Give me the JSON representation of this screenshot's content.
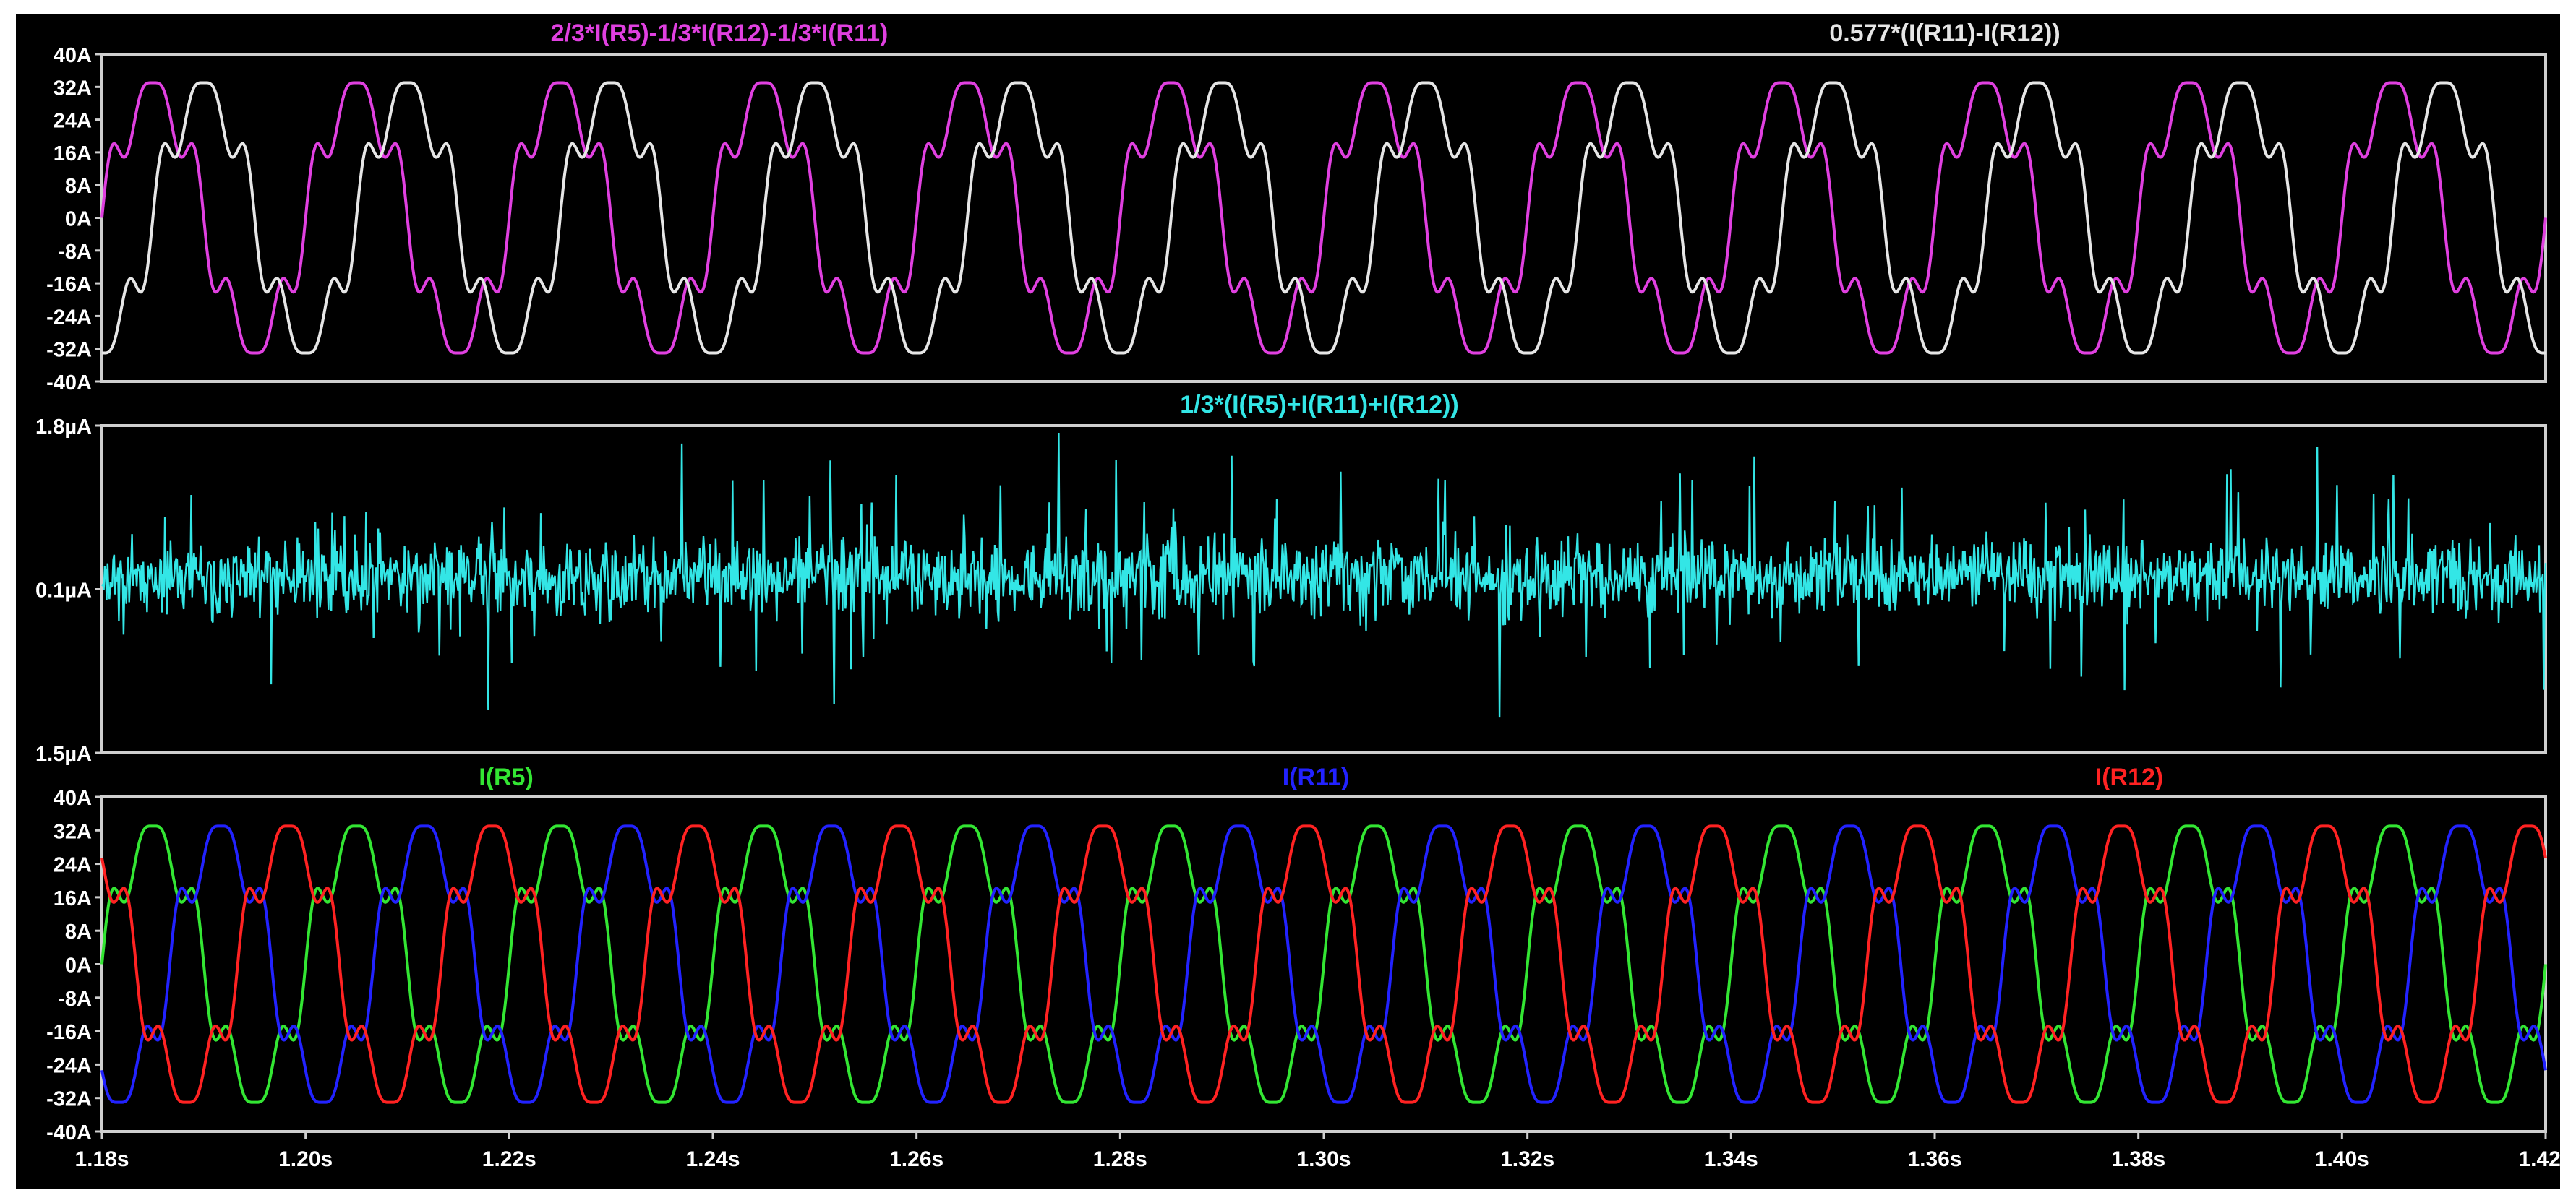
{
  "chart_data": [
    {
      "type": "line",
      "title": "",
      "xlabel": "",
      "ylabel": "",
      "xlim": [
        1.18,
        1.42
      ],
      "ylim": [
        -40,
        40
      ],
      "grid": false,
      "legend": "top",
      "yticks": [
        "40A",
        "32A",
        "24A",
        "16A",
        "8A",
        "0A",
        "-8A",
        "-16A",
        "-24A",
        "-32A",
        "-40A"
      ],
      "series": [
        {
          "name": "2/3*I(R5)-1/3*I(R12)-1/3*I(R11)",
          "color": "#e040e0",
          "waveform": "phase-step sinusoid",
          "frequency_hz": 50,
          "amplitude_a": 38,
          "phase_deg": 0
        },
        {
          "name": "0.577*(I(R11)-I(R12))",
          "color": "#e6e6e6",
          "waveform": "phase-step sinusoid",
          "frequency_hz": 50,
          "amplitude_a": 38,
          "phase_deg": -90
        }
      ]
    },
    {
      "type": "line",
      "title": "",
      "xlabel": "",
      "ylabel": "",
      "xlim": [
        1.18,
        1.42
      ],
      "ylim": [
        "-1.5µA",
        "1.8µA"
      ],
      "grid": false,
      "legend": "top",
      "yticks": [
        "1.8µA",
        "0.1µA",
        "1.5µA"
      ],
      "series": [
        {
          "name": "1/3*(I(R5)+I(R11)+I(R12))",
          "color": "#33e6e6",
          "waveform": "noise",
          "mean_ua": 0.1
        }
      ]
    },
    {
      "type": "line",
      "title": "",
      "xlabel": "",
      "ylabel": "",
      "xlim": [
        1.18,
        1.42
      ],
      "ylim": [
        -40,
        40
      ],
      "grid": false,
      "legend": "top",
      "yticks": [
        "40A",
        "32A",
        "24A",
        "16A",
        "8A",
        "0A",
        "-8A",
        "-16A",
        "-24A",
        "-32A",
        "-40A"
      ],
      "xticks": [
        "1.18s",
        "1.20s",
        "1.22s",
        "1.24s",
        "1.26s",
        "1.28s",
        "1.30s",
        "1.32s",
        "1.34s",
        "1.36s",
        "1.38s",
        "1.40s",
        "1.42s"
      ],
      "series": [
        {
          "name": "I(R5)",
          "color": "#33e633",
          "waveform": "phase-step sinusoid",
          "frequency_hz": 50,
          "amplitude_a": 38,
          "phase_deg": 0
        },
        {
          "name": "I(R11)",
          "color": "#2222ff",
          "waveform": "phase-step sinusoid",
          "frequency_hz": 50,
          "amplitude_a": 38,
          "phase_deg": -120
        },
        {
          "name": "I(R12)",
          "color": "#ff2222",
          "waveform": "phase-step sinusoid",
          "frequency_hz": 50,
          "amplitude_a": 38,
          "phase_deg": 120
        }
      ]
    }
  ]
}
